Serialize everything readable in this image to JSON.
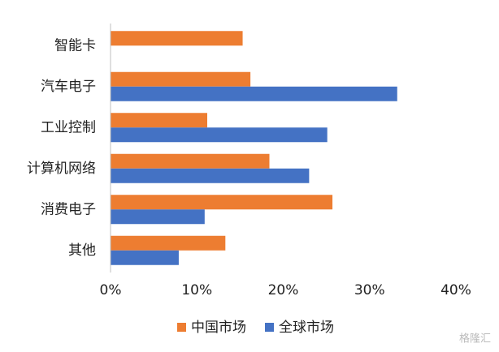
{
  "chart_data": {
    "type": "hbar",
    "categories": [
      "智能卡",
      "汽车电子",
      "工业控制",
      "计算机网络",
      "消费电子",
      "其他"
    ],
    "series": [
      {
        "name": "中国市场",
        "color": "#ed7d31",
        "values": [
          15.3,
          16.2,
          11.2,
          18.4,
          25.7,
          13.3
        ]
      },
      {
        "name": "全球市场",
        "color": "#4472c4",
        "values": [
          null,
          33.2,
          25.1,
          23.0,
          10.9,
          7.9
        ]
      }
    ],
    "xlim": [
      0,
      40
    ],
    "xticks": [
      {
        "value": 0,
        "label": "0%"
      },
      {
        "value": 10,
        "label": "10%"
      },
      {
        "value": 20,
        "label": "20%"
      },
      {
        "value": 30,
        "label": "30%"
      },
      {
        "value": 40,
        "label": "40%"
      }
    ],
    "legend": "bottom",
    "watermark": "格隆汇"
  }
}
